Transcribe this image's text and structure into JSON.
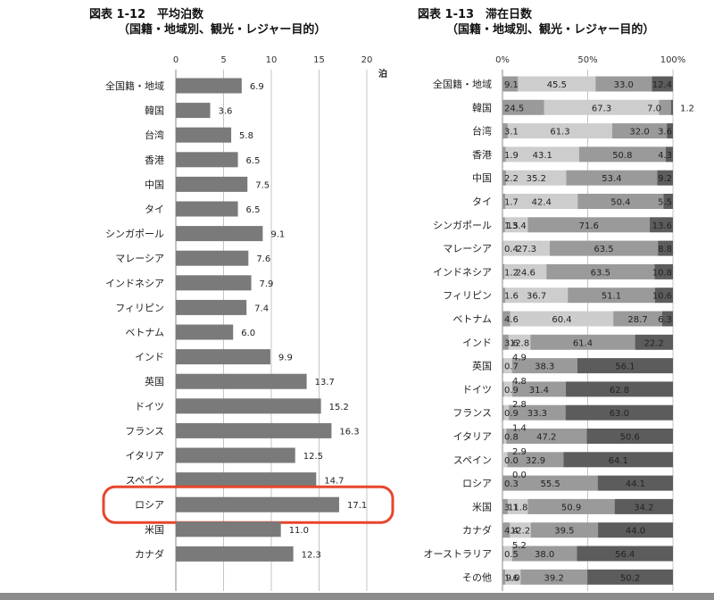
{
  "chart_data": [
    {
      "type": "bar",
      "orientation": "horizontal",
      "title": "図表 1-12　平均泊数",
      "subtitle": "（国籍・地域別、観光・レジャー目的）",
      "unit": "泊",
      "xlim": [
        0,
        20
      ],
      "xticks": [
        0,
        5,
        10,
        15,
        20
      ],
      "grid": true,
      "categories": [
        "全国籍・地域",
        "韓国",
        "台湾",
        "香港",
        "中国",
        "タイ",
        "シンガポール",
        "マレーシア",
        "インドネシア",
        "フィリピン",
        "ベトナム",
        "インド",
        "英国",
        "ドイツ",
        "フランス",
        "イタリア",
        "スペイン",
        "ロシア",
        "米国",
        "カナダ"
      ],
      "values": [
        6.9,
        3.6,
        5.8,
        6.5,
        7.5,
        6.5,
        9.1,
        7.6,
        7.9,
        7.4,
        6.0,
        9.9,
        13.7,
        15.2,
        16.3,
        12.5,
        14.7,
        17.1,
        11.0,
        12.3
      ],
      "value_labels": [
        "6.9",
        "3.6",
        "5.8",
        "6.5",
        "7.5",
        "6.5",
        "9.1",
        "7.6",
        "7.9",
        "7.4",
        "6.0",
        "9.9",
        "13.7",
        "15.2",
        "16.3",
        "12.5",
        "14.7",
        "17.1",
        "11.0",
        "12.3"
      ],
      "bar_color": "#7a7a7a",
      "highlight": {
        "category": "ロシア",
        "color": "#e8452c"
      }
    },
    {
      "type": "bar",
      "orientation": "horizontal",
      "stacked": true,
      "percent": true,
      "title": "図表 1-13　滞在日数",
      "subtitle": "（国籍・地域別、観光・レジャー目的）",
      "xlim": [
        0,
        100
      ],
      "xtick_labels": [
        "0%",
        "50%",
        "100%"
      ],
      "categories": [
        "全国籍・地域",
        "韓国",
        "台湾",
        "香港",
        "中国",
        "タイ",
        "シンガポール",
        "マレーシア",
        "インドネシア",
        "フィリピン",
        "ベトナム",
        "インド",
        "英国",
        "ドイツ",
        "フランス",
        "イタリア",
        "スペイン",
        "ロシア",
        "米国",
        "カナダ",
        "オーストラリア",
        "その他"
      ],
      "segment_colors": [
        "#9a9a9a",
        "#cdcdcd",
        "#9a9a9a",
        "#5c5c5c"
      ],
      "series": [
        {
          "values": [
            9.1,
            24.5,
            3.1,
            1.9,
            2.2,
            1.7,
            1.5,
            0.4,
            1.2,
            1.6,
            4.6,
            3.6,
            0.7,
            0.9,
            0.9,
            0.8,
            0.0,
            0.3,
            3.1,
            4.4,
            0.5,
            1.6
          ]
        },
        {
          "values": [
            45.5,
            67.3,
            61.3,
            43.1,
            35.2,
            42.4,
            13.4,
            27.3,
            24.6,
            36.7,
            60.4,
            12.8,
            4.9,
            4.8,
            2.8,
            1.4,
            2.9,
            0.0,
            11.8,
            12.2,
            5.2,
            9.0
          ]
        },
        {
          "values": [
            33.0,
            7.0,
            32.0,
            50.8,
            53.4,
            50.4,
            71.6,
            63.5,
            63.5,
            51.1,
            28.7,
            61.4,
            38.3,
            31.4,
            33.3,
            47.2,
            32.9,
            55.5,
            50.9,
            39.5,
            38.0,
            39.2
          ]
        },
        {
          "values": [
            12.4,
            1.2,
            3.6,
            4.3,
            9.2,
            5.5,
            13.6,
            8.8,
            10.8,
            10.6,
            6.3,
            22.2,
            56.1,
            62.8,
            63.0,
            50.6,
            64.1,
            44.1,
            34.2,
            44.0,
            56.4,
            50.2
          ]
        }
      ],
      "labels": [
        [
          "9.1",
          "45.5",
          "33.0",
          "12.4"
        ],
        [
          "24.5",
          "67.3",
          "7.0",
          "1.2"
        ],
        [
          "3.1",
          "61.3",
          "32.0",
          "3.6"
        ],
        [
          "1.9",
          "43.1",
          "50.8",
          "4.3"
        ],
        [
          "2.2",
          "35.2",
          "53.4",
          "9.2"
        ],
        [
          "1.7",
          "42.4",
          "50.4",
          "5.5"
        ],
        [
          "1.5",
          "13.4",
          "71.6",
          "13.6"
        ],
        [
          "0.4",
          "27.3",
          "63.5",
          "8.8"
        ],
        [
          "1.2",
          "24.6",
          "63.5",
          "10.8"
        ],
        [
          "1.6",
          "36.7",
          "51.1",
          "10.6"
        ],
        [
          "4.6",
          "60.4",
          "28.7",
          "6.3"
        ],
        [
          "3.6",
          "12.8",
          "61.4",
          "22.2"
        ],
        [
          "0.7",
          "4.9",
          "38.3",
          "56.1"
        ],
        [
          "0.9",
          "4.8",
          "31.4",
          "62.8"
        ],
        [
          "0.9",
          "2.8",
          "33.3",
          "63.0"
        ],
        [
          "0.8",
          "1.4",
          "47.2",
          "50.6"
        ],
        [
          "0.0",
          "2.9",
          "32.9",
          "64.1"
        ],
        [
          "0.3",
          "0.0",
          "55.5",
          "44.1"
        ],
        [
          "3.1",
          "11.8",
          "50.9",
          "34.2"
        ],
        [
          "4.4",
          "12.2",
          "39.5",
          "44.0"
        ],
        [
          "0.5",
          "5.2",
          "38.0",
          "56.4"
        ],
        [
          "1.6",
          "9.0",
          "39.2",
          "50.2"
        ]
      ]
    }
  ]
}
